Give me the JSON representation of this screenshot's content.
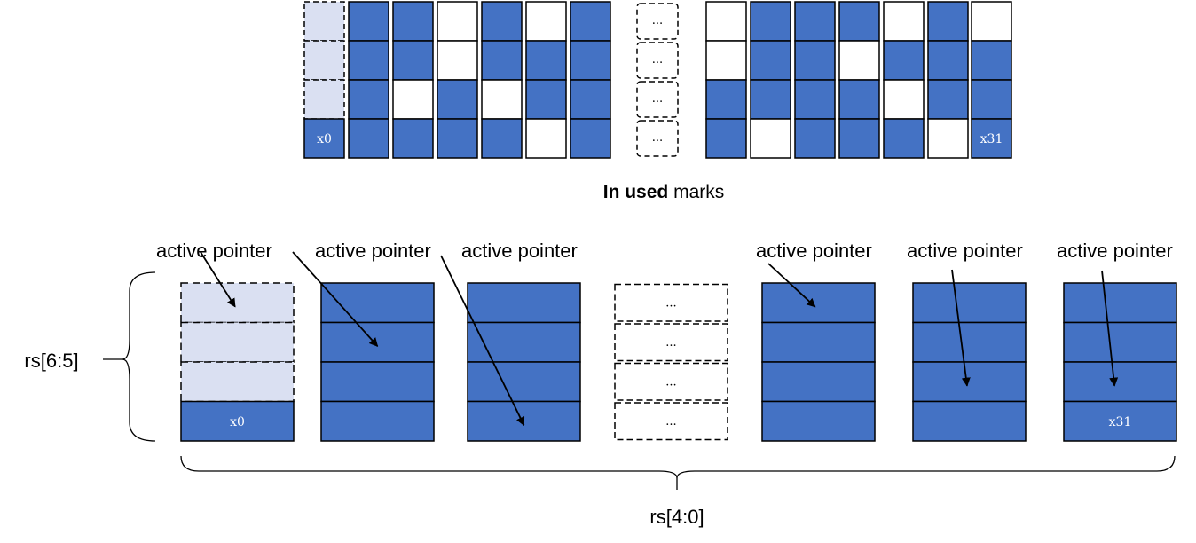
{
  "colors": {
    "filled": "#4472C4",
    "empty": "#FFFFFF",
    "placeholder": "#DAE0F2",
    "stroke": "#000000"
  },
  "marks": {
    "caption_bold": "In used",
    "caption_rest": " marks",
    "ellipsis": "...",
    "first_label": "x0",
    "last_label": "x31",
    "columns": [
      {
        "kind": "placeholder",
        "cells": [
          "placeholder",
          "placeholder",
          "placeholder",
          "filled"
        ],
        "label": "x0"
      },
      {
        "kind": "normal",
        "cells": [
          "filled",
          "filled",
          "filled",
          "filled"
        ]
      },
      {
        "kind": "normal",
        "cells": [
          "filled",
          "filled",
          "empty",
          "filled"
        ]
      },
      {
        "kind": "normal",
        "cells": [
          "empty",
          "empty",
          "filled",
          "filled"
        ]
      },
      {
        "kind": "normal",
        "cells": [
          "filled",
          "filled",
          "empty",
          "filled"
        ]
      },
      {
        "kind": "normal",
        "cells": [
          "empty",
          "filled",
          "filled",
          "empty"
        ]
      },
      {
        "kind": "normal",
        "cells": [
          "filled",
          "filled",
          "filled",
          "filled"
        ]
      },
      {
        "kind": "ellipsis"
      },
      {
        "kind": "normal",
        "cells": [
          "empty",
          "empty",
          "filled",
          "filled"
        ]
      },
      {
        "kind": "normal",
        "cells": [
          "filled",
          "filled",
          "filled",
          "empty"
        ]
      },
      {
        "kind": "normal",
        "cells": [
          "filled",
          "filled",
          "filled",
          "filled"
        ]
      },
      {
        "kind": "normal",
        "cells": [
          "filled",
          "empty",
          "filled",
          "filled"
        ]
      },
      {
        "kind": "normal",
        "cells": [
          "empty",
          "filled",
          "empty",
          "filled"
        ]
      },
      {
        "kind": "normal",
        "cells": [
          "filled",
          "filled",
          "filled",
          "empty"
        ]
      },
      {
        "kind": "normal",
        "cells": [
          "empty",
          "filled",
          "filled",
          "filled"
        ],
        "label": "x31"
      }
    ]
  },
  "registers": {
    "pointer_label": "active pointer",
    "ellipsis": "...",
    "row_axis_label": "rs[6:5]",
    "col_axis_label": "rs[4:0]",
    "first_label": "x0",
    "last_label": "x31",
    "columns": [
      {
        "kind": "placeholder",
        "label": "x0",
        "active_row": 0
      },
      {
        "kind": "normal",
        "active_row": 1
      },
      {
        "kind": "normal",
        "active_row": 3
      },
      {
        "kind": "ellipsis"
      },
      {
        "kind": "normal",
        "active_row": 0
      },
      {
        "kind": "normal",
        "active_row": 2
      },
      {
        "kind": "normal",
        "active_row": 2,
        "label": "x31"
      }
    ]
  }
}
